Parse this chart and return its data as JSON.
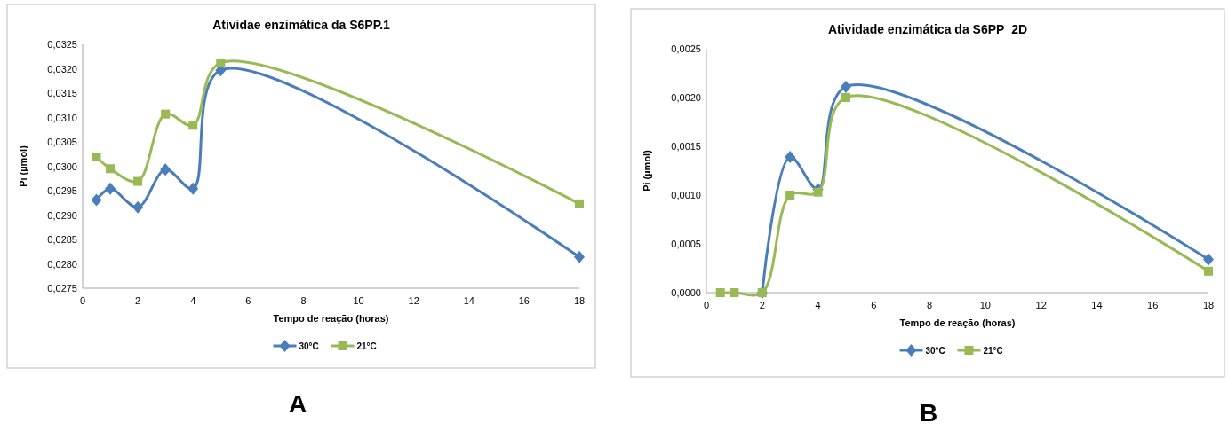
{
  "chart_data": [
    {
      "type": "line",
      "title": "Atividae enzimática da S6PP.1",
      "xlabel": "Tempo de reação (horas)",
      "ylabel": "Pi (µmol)",
      "x": [
        0.5,
        1,
        2,
        3,
        4,
        5,
        18
      ],
      "series": [
        {
          "name": "30°C",
          "color": "#4a7ebb",
          "marker": "diamond",
          "values": [
            0.02931,
            0.02954,
            0.02916,
            0.02993,
            0.02954,
            0.03197,
            0.02814
          ]
        },
        {
          "name": "21°C",
          "color": "#98b954",
          "marker": "square",
          "values": [
            0.03019,
            0.02995,
            0.02969,
            0.03107,
            0.03084,
            0.03212,
            0.02923
          ]
        }
      ],
      "xlim": [
        0,
        18
      ],
      "xticks": [
        0,
        2,
        4,
        6,
        8,
        10,
        12,
        14,
        16,
        18
      ],
      "ylim": [
        0.0275,
        0.0325
      ],
      "yticks": [
        {
          "value": 0.0275,
          "label": "0,0275"
        },
        {
          "value": 0.028,
          "label": "0,0280"
        },
        {
          "value": 0.0285,
          "label": "0,0285"
        },
        {
          "value": 0.029,
          "label": "0,0290"
        },
        {
          "value": 0.0295,
          "label": "0,0295"
        },
        {
          "value": 0.03,
          "label": "0,0300"
        },
        {
          "value": 0.0305,
          "label": "0,0305"
        },
        {
          "value": 0.031,
          "label": "0,0310"
        },
        {
          "value": 0.0315,
          "label": "0,0315"
        },
        {
          "value": 0.032,
          "label": "0,0320"
        },
        {
          "value": 0.0325,
          "label": "0,0325"
        }
      ],
      "legend": "bottom",
      "grid": false,
      "annotations": [
        "A"
      ]
    },
    {
      "type": "line",
      "title": "Atividade enzimática da S6PP_2D",
      "xlabel": "Tempo de reação (horas)",
      "ylabel": "Pi (µmol)",
      "x": [
        0.5,
        1,
        2,
        3,
        4,
        5,
        18
      ],
      "series": [
        {
          "name": "30°C",
          "color": "#4a7ebb",
          "marker": "diamond",
          "values": [
            null,
            null,
            0,
            0.00139,
            0.00106,
            0.00211,
            0.00034
          ]
        },
        {
          "name": "21°C",
          "color": "#98b954",
          "marker": "square",
          "values": [
            0,
            0,
            0,
            0.001,
            0.00103,
            0.002,
            0.00022
          ]
        }
      ],
      "xlim": [
        0,
        18
      ],
      "xticks": [
        0,
        2,
        4,
        6,
        8,
        10,
        12,
        14,
        16,
        18
      ],
      "ylim": [
        0,
        0.0025
      ],
      "yticks": [
        {
          "value": 0,
          "label": "0,0000"
        },
        {
          "value": 0.0005,
          "label": "0,0005"
        },
        {
          "value": 0.001,
          "label": "0,0010"
        },
        {
          "value": 0.0015,
          "label": "0,0015"
        },
        {
          "value": 0.002,
          "label": "0,0020"
        },
        {
          "value": 0.0025,
          "label": "0,0025"
        }
      ],
      "legend": "bottom",
      "grid": false,
      "annotations": [
        "B"
      ]
    }
  ]
}
